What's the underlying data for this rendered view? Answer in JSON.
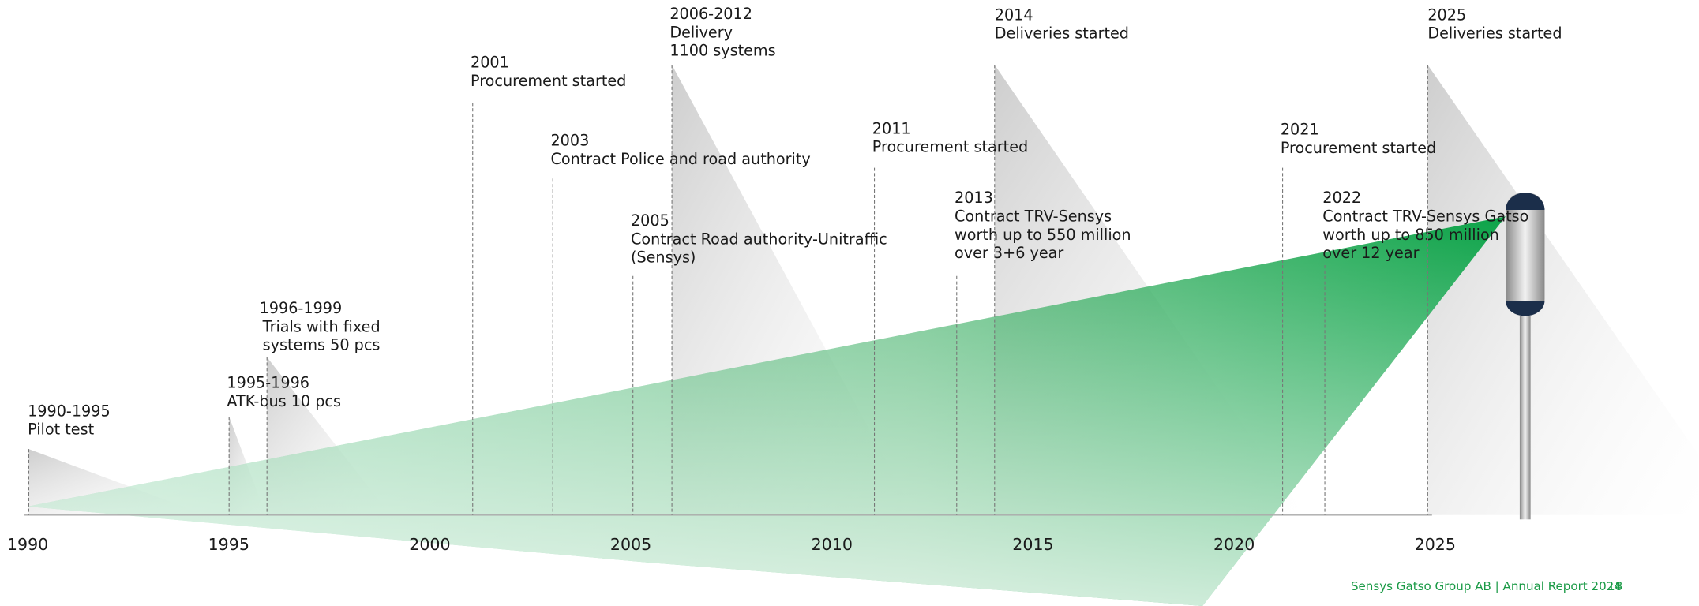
{
  "axis": {
    "years": [
      "1990",
      "1995",
      "2000",
      "2005",
      "2010",
      "2015",
      "2020",
      "2025"
    ]
  },
  "events": [
    {
      "label": "1990-1995",
      "lines": [
        "Pilot test"
      ]
    },
    {
      "label": "1995-1996",
      "lines": [
        "ATK-bus 10 pcs"
      ]
    },
    {
      "label": "1996-1999",
      "lines": [
        "Trials with fixed",
        "systems 50 pcs"
      ]
    },
    {
      "label": "2001",
      "lines": [
        "Procurement started"
      ]
    },
    {
      "label": "2003",
      "lines": [
        "Contract Police and road authority"
      ]
    },
    {
      "label": "2005",
      "lines": [
        "Contract Road authority-Unitraffic",
        "(Sensys)"
      ]
    },
    {
      "label": "2006-2012",
      "lines": [
        "Delivery",
        "1100 systems"
      ]
    },
    {
      "label": "2011",
      "lines": [
        "Procurement started"
      ]
    },
    {
      "label": "2013",
      "lines": [
        "Contract TRV-Sensys",
        "worth up to 550 million",
        "over 3+6 year"
      ]
    },
    {
      "label": "2014",
      "lines": [
        "Deliveries started"
      ]
    },
    {
      "label": "2021",
      "lines": [
        "Procurement started"
      ]
    },
    {
      "label": "2022",
      "lines": [
        "Contract TRV-Sensys Gatso",
        "worth up to 850 million",
        "over 12 year"
      ]
    },
    {
      "label": "2025",
      "lines": [
        "Deliveries started"
      ]
    }
  ],
  "footer": {
    "text": "Sensys Gatso Group AB | Annual Report 2024",
    "page": "18"
  }
}
